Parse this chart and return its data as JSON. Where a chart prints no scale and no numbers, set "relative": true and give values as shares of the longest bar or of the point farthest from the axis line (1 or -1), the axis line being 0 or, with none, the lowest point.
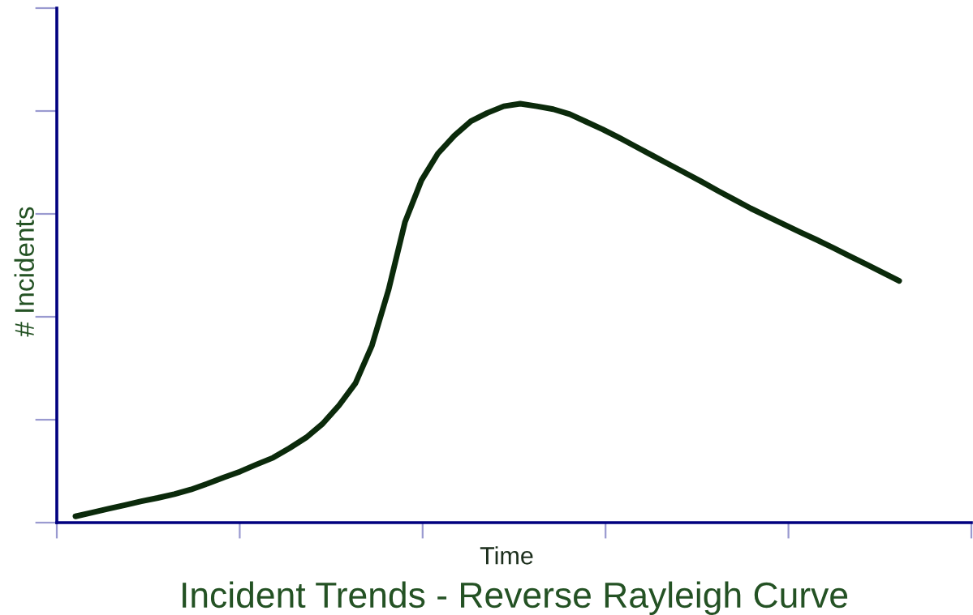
{
  "chart_data": {
    "type": "line",
    "title": "Incident Trends - Reverse Rayleigh Curve",
    "xlabel": "Time",
    "ylabel": "# Incidents",
    "relative": true,
    "categories": [
      null,
      null,
      null,
      null,
      null,
      null,
      null,
      null,
      null,
      null,
      null,
      null,
      null,
      null,
      null,
      null,
      null,
      null,
      null,
      null,
      null,
      null,
      null,
      null,
      null,
      null,
      null,
      null,
      null,
      null,
      null,
      null,
      null,
      null,
      null,
      null,
      null,
      null,
      null,
      null,
      null,
      null,
      null,
      null,
      null,
      null,
      null,
      null,
      null,
      null,
      null
    ],
    "series": [
      {
        "color": "#0b2a0b",
        "values": [
          0.015,
          0.024,
          0.033,
          0.042,
          0.051,
          0.059,
          0.068,
          0.079,
          0.093,
          0.108,
          0.122,
          0.139,
          0.155,
          0.178,
          0.203,
          0.236,
          0.28,
          0.333,
          0.423,
          0.555,
          0.717,
          0.817,
          0.881,
          0.924,
          0.958,
          0.978,
          0.994,
          1.0,
          0.994,
          0.987,
          0.975,
          0.957,
          0.939,
          0.919,
          0.898,
          0.877,
          0.856,
          0.835,
          0.814,
          0.792,
          0.771,
          0.75,
          0.731,
          0.712,
          0.693,
          0.675,
          0.656,
          0.636,
          0.617,
          0.597,
          0.577
        ]
      }
    ]
  }
}
